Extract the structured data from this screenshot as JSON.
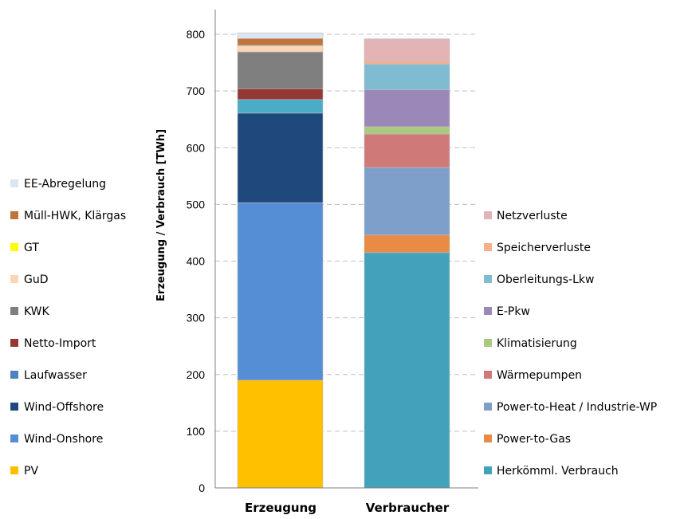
{
  "chart_data": {
    "type": "bar",
    "stacked": true,
    "categories": [
      "Erzeugung",
      "Verbraucher"
    ],
    "ylabel": "Erzeugung / Verbrauch [TWh]",
    "ylim": [
      0,
      800
    ],
    "yticks": [
      0,
      100,
      200,
      300,
      400,
      500,
      600,
      700,
      800
    ],
    "grid": true,
    "stacks": [
      {
        "category": "Erzeugung",
        "legend_position": "left",
        "series": [
          {
            "name": "PV",
            "value": 190,
            "color": "#FFC000"
          },
          {
            "name": "Wind-Onshore",
            "value": 313,
            "color": "#558ED5"
          },
          {
            "name": "Wind-Offshore",
            "value": 158,
            "color": "#1F497D"
          },
          {
            "name": "Laufwasser",
            "value": 24,
            "color": "#4BACC6"
          },
          {
            "name": "Netto-Import",
            "value": 19,
            "color": "#953735"
          },
          {
            "name": "KWK",
            "value": 65,
            "color": "#7F7F7F"
          },
          {
            "name": "GuD",
            "value": 11,
            "color": "#FCD5B5"
          },
          {
            "name": "GT",
            "value": 0.5,
            "color": "#FFFF00"
          },
          {
            "name": "Müll-HWK, Klärgas",
            "value": 12,
            "color": "#C0733A"
          },
          {
            "name": "EE-Abregelung",
            "value": 10,
            "color": "#DCE6F2"
          }
        ],
        "legend_colors": {
          "Laufwasser": "#4F81BD"
        }
      },
      {
        "category": "Verbraucher",
        "legend_position": "right",
        "series": [
          {
            "name": "Herkömml. Verbrauch",
            "value": 415,
            "color": "#43A2BB"
          },
          {
            "name": "Power-to-Gas",
            "value": 31,
            "color": "#E98B45"
          },
          {
            "name": "Power-to-Heat / Industrie-WP",
            "value": 119,
            "color": "#7F9FCB"
          },
          {
            "name": "Wärmepumpen",
            "value": 59,
            "color": "#D07979"
          },
          {
            "name": "Klimatisierung",
            "value": 13,
            "color": "#A9C97F"
          },
          {
            "name": "E-Pkw",
            "value": 65,
            "color": "#9C88B8"
          },
          {
            "name": "Oberleitungs-Lkw",
            "value": 45,
            "color": "#7FBCD2"
          },
          {
            "name": "Speicherverluste",
            "value": 5,
            "color": "#F5B08A"
          },
          {
            "name": "Netzverluste",
            "value": 40,
            "color": "#E2B4B6"
          }
        ]
      }
    ]
  }
}
